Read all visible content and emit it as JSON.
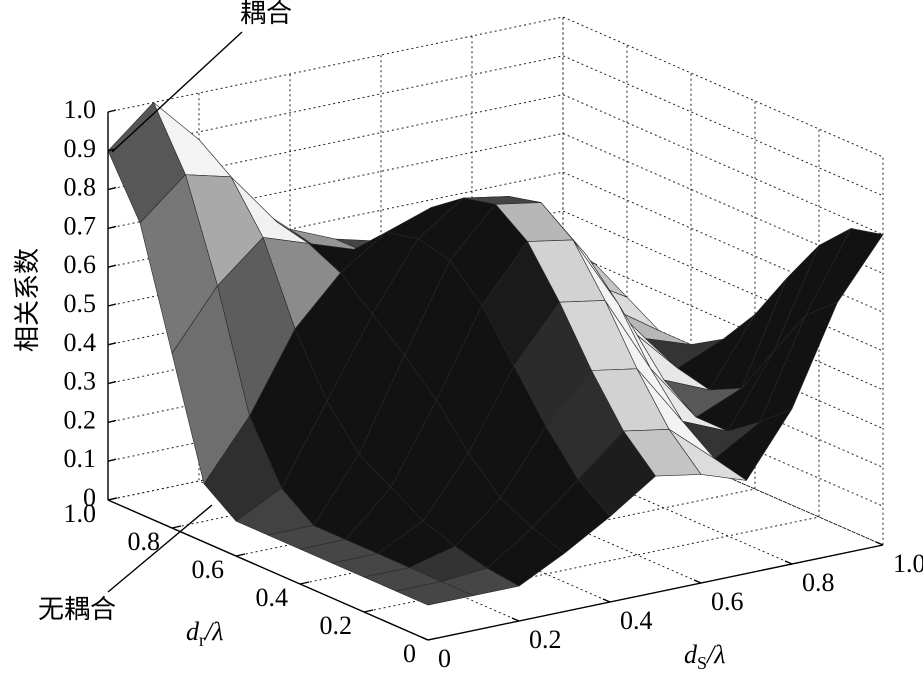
{
  "chart_data": {
    "type": "surface",
    "zlabel": "相关系数",
    "xlabel": {
      "main": "d",
      "sub": "S",
      "tail": "/λ"
    },
    "ylabel": {
      "main": "d",
      "sub": "r",
      "tail": "/λ"
    },
    "annotations": [
      {
        "text": "耦合"
      },
      {
        "text": "无耦合"
      }
    ],
    "x": [
      0,
      0.1,
      0.2,
      0.3,
      0.4,
      0.5,
      0.6,
      0.7,
      0.8,
      0.9,
      1
    ],
    "y": [
      0,
      0.1,
      0.2,
      0.3,
      0.4,
      0.5,
      0.6,
      0.7,
      0.8,
      0.9,
      1
    ],
    "z": [
      [
        0.09,
        0.09,
        0.09,
        0.15,
        0.22,
        0.3,
        0.28,
        0.24,
        0.4,
        0.65,
        0.8
      ],
      [
        0.09,
        0.09,
        0.1,
        0.18,
        0.28,
        0.38,
        0.36,
        0.26,
        0.33,
        0.58,
        0.78
      ],
      [
        0.09,
        0.09,
        0.12,
        0.22,
        0.38,
        0.5,
        0.48,
        0.32,
        0.27,
        0.45,
        0.7
      ],
      [
        0.09,
        0.09,
        0.15,
        0.3,
        0.5,
        0.64,
        0.62,
        0.42,
        0.27,
        0.32,
        0.58
      ],
      [
        0.09,
        0.09,
        0.2,
        0.4,
        0.62,
        0.76,
        0.74,
        0.55,
        0.33,
        0.28,
        0.45
      ],
      [
        0.09,
        0.09,
        0.25,
        0.48,
        0.7,
        0.82,
        0.8,
        0.64,
        0.42,
        0.3,
        0.35
      ],
      [
        0.09,
        0.15,
        0.35,
        0.55,
        0.72,
        0.8,
        0.78,
        0.66,
        0.48,
        0.34,
        0.3
      ],
      [
        0.15,
        0.3,
        0.5,
        0.62,
        0.7,
        0.74,
        0.72,
        0.64,
        0.5,
        0.38,
        0.3
      ],
      [
        0.45,
        0.6,
        0.7,
        0.66,
        0.62,
        0.62,
        0.62,
        0.58,
        0.5,
        0.42,
        0.35
      ],
      [
        0.75,
        0.85,
        0.82,
        0.68,
        0.58,
        0.55,
        0.55,
        0.52,
        0.48,
        0.44,
        0.4
      ],
      [
        0.9,
        1.0,
        0.88,
        0.7,
        0.6,
        0.55,
        0.52,
        0.5,
        0.48,
        0.45,
        0.42
      ]
    ],
    "xlim": [
      0,
      1
    ],
    "ylim": [
      0,
      1
    ],
    "zlim": [
      0,
      1
    ],
    "xticks": [
      0,
      0.2,
      0.4,
      0.6,
      0.8,
      {
        "value": 1,
        "label": "1.0"
      }
    ],
    "yticks": [
      0,
      0.2,
      0.4,
      0.6,
      0.8,
      {
        "value": 1,
        "label": "1.0"
      }
    ],
    "zticks": [
      0,
      0.1,
      0.2,
      0.3,
      0.4,
      0.5,
      0.6,
      0.7,
      0.8,
      0.9,
      {
        "value": 1,
        "label": "1.0"
      }
    ],
    "grid": true,
    "colormap": "gray"
  }
}
